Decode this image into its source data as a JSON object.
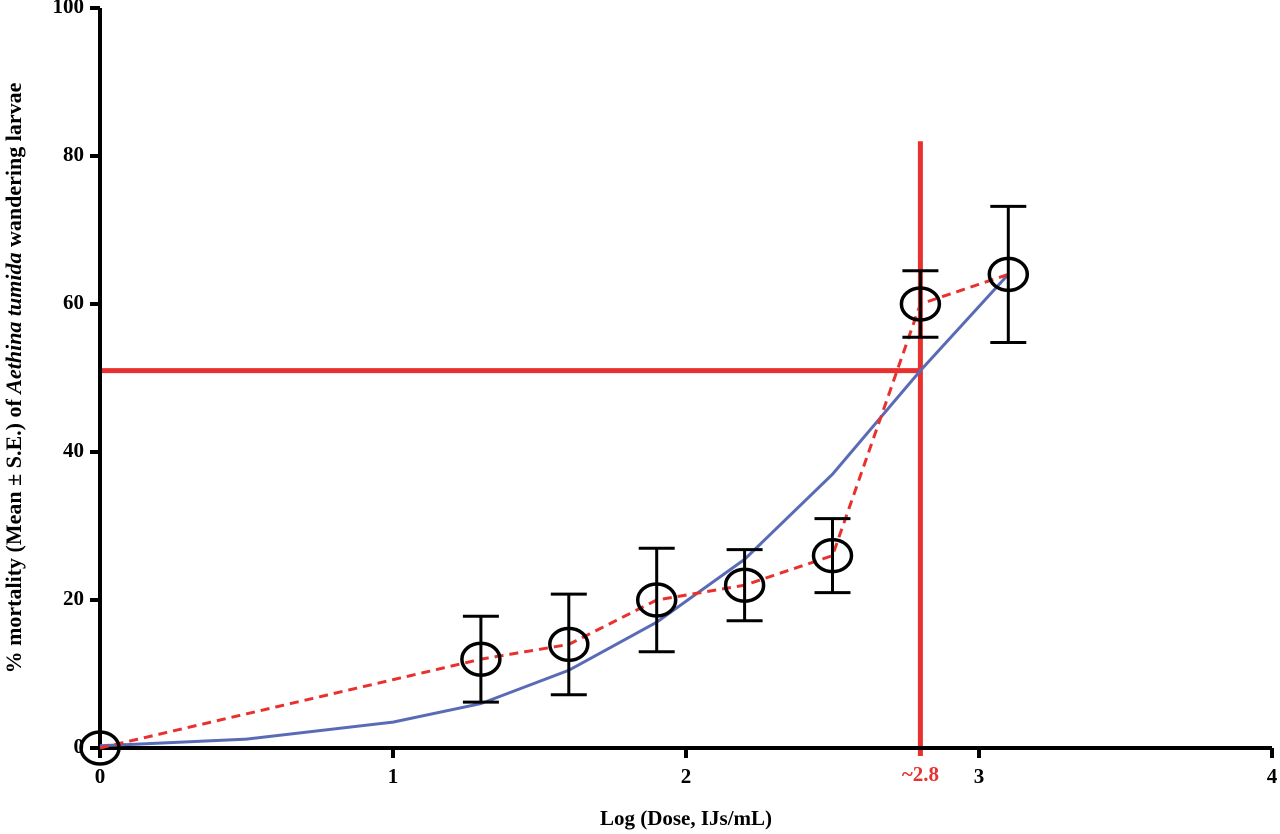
{
  "chart_data": {
    "type": "line",
    "xlabel": "Log (Dose, IJs/mL)",
    "ylabel_parts": [
      "% mortality (Mean ± S.E.) of ",
      "Aethina tumida",
      " wandering larvae"
    ],
    "xlim": [
      0,
      4
    ],
    "xticks": [
      0,
      1,
      2,
      3,
      4
    ],
    "ylim": [
      0,
      100
    ],
    "yticks": [
      0,
      20,
      40,
      60,
      80,
      100
    ],
    "series": [
      {
        "color": "#e8312f",
        "style": "dashed",
        "x": [
          0,
          1.3,
          1.6,
          1.9,
          2.2,
          2.5,
          2.8,
          3.1
        ],
        "values": [
          0,
          12,
          14,
          20,
          22,
          26,
          60,
          64
        ],
        "errors": [
          0,
          5.8,
          6.8,
          7,
          4.8,
          5,
          4.5,
          9.2
        ]
      },
      {
        "color": "#5a6bb5",
        "style": "solid",
        "x": [
          0,
          0.5,
          1,
          1.3,
          1.6,
          1.9,
          2.2,
          2.5,
          2.8,
          3.1
        ],
        "values": [
          0.3,
          1.2,
          3.5,
          6,
          10.5,
          17,
          25.5,
          37,
          51,
          64
        ]
      }
    ],
    "reference": {
      "color": "#e8312f",
      "y": 51,
      "x": 2.8,
      "x_line_top": 82,
      "annotation": "~2.8"
    }
  }
}
